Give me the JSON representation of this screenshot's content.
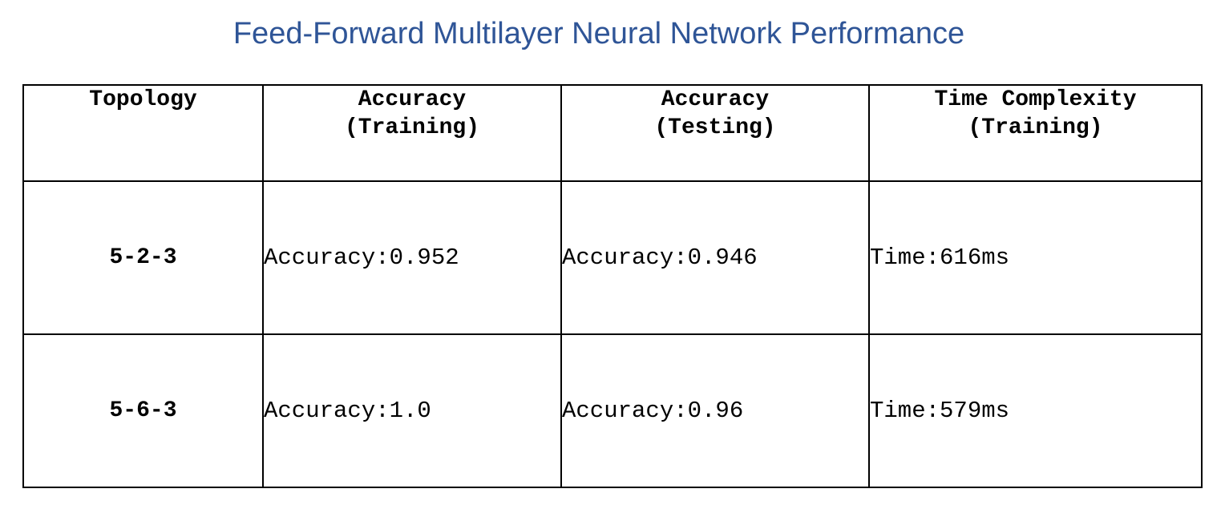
{
  "title": "Feed-Forward Multilayer Neural Network Performance",
  "table": {
    "headers": [
      {
        "line1": "Topology",
        "line2": ""
      },
      {
        "line1": "Accuracy",
        "line2": "(Training)"
      },
      {
        "line1": "Accuracy",
        "line2": "(Testing)"
      },
      {
        "line1": "Time Complexity",
        "line2": "(Training)"
      }
    ],
    "rows": [
      {
        "topology": "5-2-3",
        "training_accuracy": "Accuracy:0.952",
        "testing_accuracy": "Accuracy:0.946",
        "training_time": "Time:616ms"
      },
      {
        "topology": "5-6-3",
        "training_accuracy": "Accuracy:1.0",
        "testing_accuracy": "Accuracy:0.96",
        "training_time": "Time:579ms"
      }
    ]
  },
  "colors": {
    "title": "#2f5597",
    "border": "#000000",
    "text": "#000000"
  }
}
